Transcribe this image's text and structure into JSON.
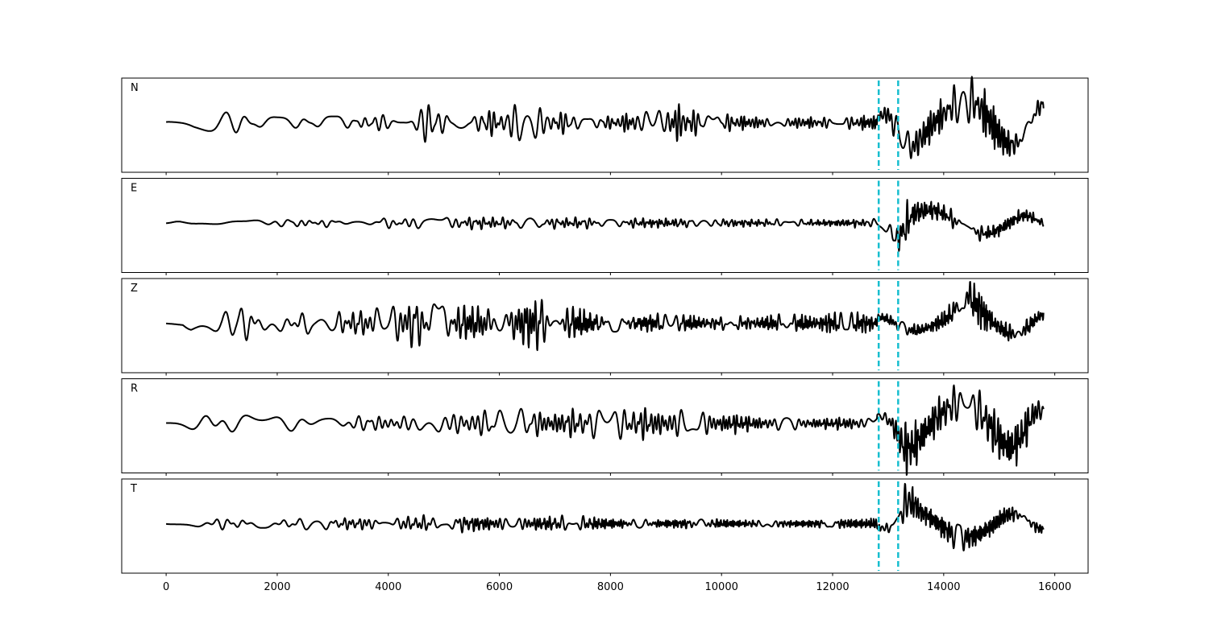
{
  "chart_data": {
    "type": "line",
    "xlim": [
      -800,
      16600
    ],
    "x_ticks": [
      0,
      2000,
      4000,
      6000,
      8000,
      10000,
      12000,
      14000,
      16000
    ],
    "x_tick_labels": [
      "0",
      "2000",
      "4000",
      "6000",
      "8000",
      "10000",
      "12000",
      "14000",
      "16000"
    ],
    "x_range": [
      0,
      15800
    ],
    "markers": [
      12830,
      13180
    ],
    "marker_color": "#17becf",
    "trace_color": "#000000",
    "grid": false,
    "panels": [
      {
        "label": "N",
        "envelope": [
          [
            0,
            0.05
          ],
          [
            300,
            0.08
          ],
          [
            500,
            0.22
          ],
          [
            900,
            0.3
          ],
          [
            1400,
            0.2
          ],
          [
            2500,
            0.15
          ],
          [
            4000,
            0.15
          ],
          [
            4600,
            0.28
          ],
          [
            4700,
            0.4
          ],
          [
            5200,
            0.25
          ],
          [
            6000,
            0.25
          ],
          [
            6400,
            0.35
          ],
          [
            6800,
            0.25
          ],
          [
            8000,
            0.12
          ],
          [
            9200,
            0.35
          ],
          [
            9500,
            0.25
          ],
          [
            10500,
            0.12
          ],
          [
            12000,
            0.1
          ],
          [
            12800,
            0.15
          ],
          [
            12900,
            0.3
          ],
          [
            13100,
            0.8
          ],
          [
            13400,
            0.85
          ],
          [
            13600,
            0.7
          ],
          [
            14000,
            0.55
          ],
          [
            14400,
            0.85
          ],
          [
            15000,
            0.8
          ],
          [
            15500,
            0.7
          ],
          [
            15800,
            0.6
          ]
        ],
        "seed": 11
      },
      {
        "label": "E",
        "envelope": [
          [
            0,
            0.03
          ],
          [
            1000,
            0.1
          ],
          [
            3000,
            0.1
          ],
          [
            4800,
            0.17
          ],
          [
            6800,
            0.15
          ],
          [
            9000,
            0.12
          ],
          [
            12000,
            0.08
          ],
          [
            12800,
            0.1
          ],
          [
            13000,
            0.25
          ],
          [
            13250,
            0.85
          ],
          [
            13350,
            0.8
          ],
          [
            13600,
            0.45
          ],
          [
            14200,
            0.45
          ],
          [
            14800,
            0.35
          ],
          [
            15500,
            0.25
          ],
          [
            15800,
            0.15
          ]
        ],
        "seed": 23
      },
      {
        "label": "Z",
        "envelope": [
          [
            0,
            0.05
          ],
          [
            300,
            0.1
          ],
          [
            450,
            0.45
          ],
          [
            700,
            0.5
          ],
          [
            1000,
            0.3
          ],
          [
            1500,
            0.4
          ],
          [
            2000,
            0.25
          ],
          [
            3500,
            0.25
          ],
          [
            4600,
            0.5
          ],
          [
            5000,
            0.35
          ],
          [
            6000,
            0.4
          ],
          [
            6700,
            0.55
          ],
          [
            7200,
            0.35
          ],
          [
            8500,
            0.2
          ],
          [
            10000,
            0.15
          ],
          [
            12000,
            0.2
          ],
          [
            13000,
            0.2
          ],
          [
            14000,
            0.3
          ],
          [
            14450,
            0.9
          ],
          [
            14700,
            0.6
          ],
          [
            15000,
            0.4
          ],
          [
            15800,
            0.3
          ]
        ],
        "seed": 37
      },
      {
        "label": "R",
        "envelope": [
          [
            0,
            0.05
          ],
          [
            500,
            0.15
          ],
          [
            800,
            0.2
          ],
          [
            2000,
            0.15
          ],
          [
            4000,
            0.15
          ],
          [
            4700,
            0.25
          ],
          [
            6300,
            0.3
          ],
          [
            7000,
            0.25
          ],
          [
            9200,
            0.3
          ],
          [
            10500,
            0.15
          ],
          [
            12000,
            0.1
          ],
          [
            12800,
            0.2
          ],
          [
            13100,
            0.5
          ],
          [
            13300,
            0.9
          ],
          [
            13600,
            0.75
          ],
          [
            14000,
            0.6
          ],
          [
            14400,
            0.75
          ],
          [
            15200,
            0.8
          ],
          [
            15600,
            0.6
          ],
          [
            15800,
            0.4
          ]
        ],
        "seed": 53
      },
      {
        "label": "T",
        "envelope": [
          [
            0,
            0.03
          ],
          [
            800,
            0.1
          ],
          [
            3000,
            0.1
          ],
          [
            4800,
            0.15
          ],
          [
            6700,
            0.15
          ],
          [
            9000,
            0.1
          ],
          [
            12000,
            0.08
          ],
          [
            12900,
            0.15
          ],
          [
            13100,
            0.3
          ],
          [
            13250,
            0.9
          ],
          [
            13350,
            0.85
          ],
          [
            13600,
            0.45
          ],
          [
            14200,
            0.5
          ],
          [
            14600,
            0.45
          ],
          [
            15500,
            0.3
          ],
          [
            15800,
            0.2
          ]
        ],
        "seed": 71
      }
    ]
  }
}
